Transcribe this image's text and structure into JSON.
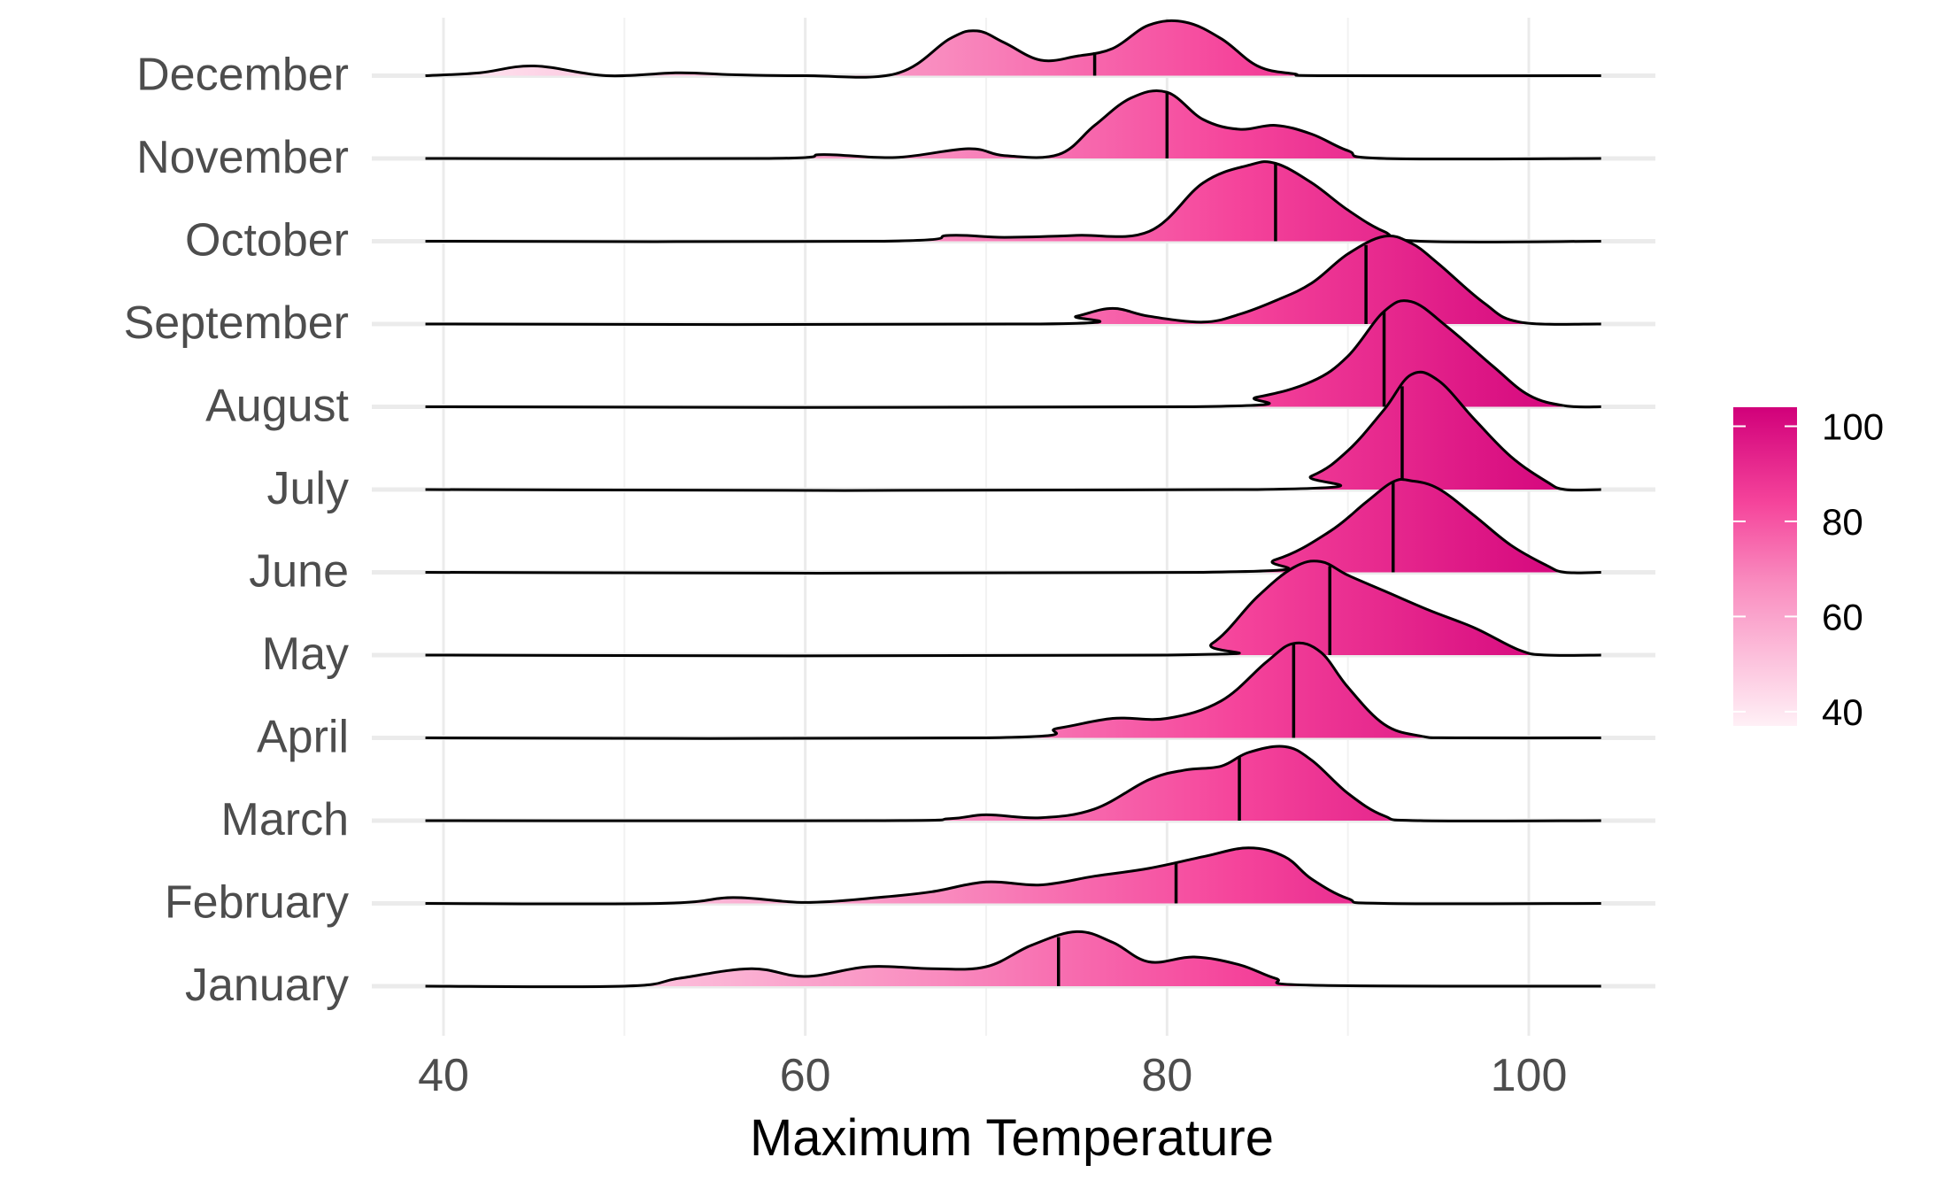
{
  "chart_data": {
    "type": "ridgeline",
    "title": "",
    "xlabel": "Maximum Temperature",
    "ylabel": "",
    "xlim": [
      37,
      107
    ],
    "xticks": [
      40,
      60,
      80,
      100
    ],
    "grid": true,
    "categories": [
      "January",
      "February",
      "March",
      "April",
      "May",
      "June",
      "July",
      "August",
      "September",
      "October",
      "November",
      "December"
    ],
    "series": [
      {
        "name": "January",
        "median": 74,
        "points": [
          [
            39,
            0
          ],
          [
            50,
            0
          ],
          [
            53,
            0.08
          ],
          [
            57,
            0.18
          ],
          [
            60,
            0.1
          ],
          [
            63.5,
            0.2
          ],
          [
            67,
            0.18
          ],
          [
            70,
            0.2
          ],
          [
            72.5,
            0.42
          ],
          [
            75,
            0.56
          ],
          [
            77,
            0.45
          ],
          [
            79,
            0.25
          ],
          [
            81.5,
            0.3
          ],
          [
            84,
            0.22
          ],
          [
            86,
            0.08
          ],
          [
            88,
            0.01
          ],
          [
            104,
            0
          ]
        ]
      },
      {
        "name": "February",
        "median": 80.5,
        "points": [
          [
            39,
            0
          ],
          [
            52,
            0
          ],
          [
            56,
            0.06
          ],
          [
            60,
            0.01
          ],
          [
            64,
            0.06
          ],
          [
            67,
            0.12
          ],
          [
            70,
            0.22
          ],
          [
            73,
            0.19
          ],
          [
            76,
            0.28
          ],
          [
            79,
            0.36
          ],
          [
            82,
            0.48
          ],
          [
            84.5,
            0.57
          ],
          [
            86.5,
            0.48
          ],
          [
            88,
            0.25
          ],
          [
            90,
            0.05
          ],
          [
            92,
            0
          ],
          [
            104,
            0
          ]
        ]
      },
      {
        "name": "March",
        "median": 84,
        "points": [
          [
            39,
            0
          ],
          [
            64,
            0
          ],
          [
            68,
            0.02
          ],
          [
            70,
            0.06
          ],
          [
            73,
            0.03
          ],
          [
            76,
            0.12
          ],
          [
            79,
            0.42
          ],
          [
            81,
            0.52
          ],
          [
            83,
            0.56
          ],
          [
            84.5,
            0.7
          ],
          [
            86.5,
            0.76
          ],
          [
            88,
            0.62
          ],
          [
            90,
            0.28
          ],
          [
            92,
            0.05
          ],
          [
            94,
            0
          ],
          [
            104,
            0
          ]
        ]
      },
      {
        "name": "April",
        "median": 87,
        "points": [
          [
            39,
            0
          ],
          [
            70,
            0
          ],
          [
            74,
            0.1
          ],
          [
            77,
            0.2
          ],
          [
            80,
            0.2
          ],
          [
            83,
            0.38
          ],
          [
            85.5,
            0.78
          ],
          [
            87,
            0.97
          ],
          [
            88.5,
            0.88
          ],
          [
            90,
            0.52
          ],
          [
            92,
            0.14
          ],
          [
            94,
            0.02
          ],
          [
            96,
            0
          ],
          [
            104,
            0
          ]
        ]
      },
      {
        "name": "May",
        "median": 89,
        "points": [
          [
            39,
            0
          ],
          [
            80,
            0
          ],
          [
            82.5,
            0.12
          ],
          [
            85,
            0.6
          ],
          [
            87,
            0.9
          ],
          [
            88.5,
            0.96
          ],
          [
            90,
            0.82
          ],
          [
            92,
            0.66
          ],
          [
            94.5,
            0.46
          ],
          [
            97,
            0.28
          ],
          [
            99.5,
            0.05
          ],
          [
            101,
            0
          ],
          [
            104,
            0
          ]
        ]
      },
      {
        "name": "June",
        "median": 92.5,
        "points": [
          [
            39,
            0
          ],
          [
            82,
            0
          ],
          [
            86,
            0.13
          ],
          [
            89,
            0.42
          ],
          [
            91,
            0.72
          ],
          [
            92.5,
            0.93
          ],
          [
            93.5,
            0.94
          ],
          [
            95,
            0.86
          ],
          [
            97,
            0.58
          ],
          [
            99,
            0.28
          ],
          [
            101,
            0.07
          ],
          [
            102,
            0
          ],
          [
            104,
            0
          ]
        ]
      },
      {
        "name": "July",
        "median": 93,
        "points": [
          [
            39,
            0
          ],
          [
            85,
            0
          ],
          [
            88,
            0.14
          ],
          [
            90,
            0.4
          ],
          [
            92,
            0.82
          ],
          [
            93.5,
            1.18
          ],
          [
            95,
            1.12
          ],
          [
            97,
            0.72
          ],
          [
            99,
            0.34
          ],
          [
            101,
            0.08
          ],
          [
            102,
            0
          ],
          [
            104,
            0
          ]
        ]
      },
      {
        "name": "August",
        "median": 92,
        "points": [
          [
            39,
            0
          ],
          [
            81,
            0
          ],
          [
            85,
            0.1
          ],
          [
            88,
            0.26
          ],
          [
            90,
            0.52
          ],
          [
            92,
            0.98
          ],
          [
            93.5,
            1.08
          ],
          [
            95.5,
            0.82
          ],
          [
            98,
            0.42
          ],
          [
            100,
            0.12
          ],
          [
            102,
            0.01
          ],
          [
            104,
            0
          ]
        ]
      },
      {
        "name": "September",
        "median": 91,
        "points": [
          [
            39,
            0
          ],
          [
            73,
            0
          ],
          [
            75,
            0.08
          ],
          [
            77,
            0.16
          ],
          [
            79,
            0.08
          ],
          [
            82,
            0.02
          ],
          [
            84,
            0.1
          ],
          [
            86,
            0.24
          ],
          [
            88,
            0.42
          ],
          [
            90,
            0.72
          ],
          [
            92,
            0.9
          ],
          [
            93.5,
            0.83
          ],
          [
            95,
            0.62
          ],
          [
            97.5,
            0.22
          ],
          [
            99.5,
            0.02
          ],
          [
            104,
            0
          ]
        ]
      },
      {
        "name": "October",
        "median": 86,
        "points": [
          [
            39,
            0
          ],
          [
            64,
            0
          ],
          [
            68,
            0.06
          ],
          [
            71,
            0.04
          ],
          [
            75,
            0.06
          ],
          [
            79,
            0.1
          ],
          [
            82,
            0.6
          ],
          [
            84.5,
            0.78
          ],
          [
            86,
            0.8
          ],
          [
            88,
            0.6
          ],
          [
            90,
            0.32
          ],
          [
            92,
            0.1
          ],
          [
            94,
            0
          ],
          [
            104,
            0
          ]
        ]
      },
      {
        "name": "November",
        "median": 80,
        "points": [
          [
            39,
            0
          ],
          [
            58,
            0
          ],
          [
            61,
            0.04
          ],
          [
            65,
            0.01
          ],
          [
            69,
            0.1
          ],
          [
            71,
            0.03
          ],
          [
            74,
            0.04
          ],
          [
            76,
            0.34
          ],
          [
            78,
            0.62
          ],
          [
            80,
            0.68
          ],
          [
            82,
            0.4
          ],
          [
            84,
            0.3
          ],
          [
            86,
            0.34
          ],
          [
            88,
            0.25
          ],
          [
            90,
            0.08
          ],
          [
            92,
            0
          ],
          [
            104,
            0
          ]
        ]
      },
      {
        "name": "December",
        "median": 76,
        "points": [
          [
            39,
            0
          ],
          [
            42,
            0.03
          ],
          [
            45,
            0.1
          ],
          [
            49,
            0
          ],
          [
            53,
            0.03
          ],
          [
            56,
            0.01
          ],
          [
            60,
            0
          ],
          [
            65,
            0.02
          ],
          [
            68,
            0.38
          ],
          [
            69.5,
            0.46
          ],
          [
            71,
            0.34
          ],
          [
            73,
            0.16
          ],
          [
            75,
            0.2
          ],
          [
            77,
            0.28
          ],
          [
            79,
            0.52
          ],
          [
            81,
            0.55
          ],
          [
            83,
            0.38
          ],
          [
            85,
            0.1
          ],
          [
            87,
            0.02
          ],
          [
            89,
            0
          ],
          [
            104,
            0
          ]
        ]
      }
    ],
    "colorbar": {
      "min": 37,
      "max": 104,
      "ticks": [
        40,
        60,
        80,
        100
      ],
      "low_color": "#fff0f6",
      "high_color": "#d1007a"
    }
  }
}
